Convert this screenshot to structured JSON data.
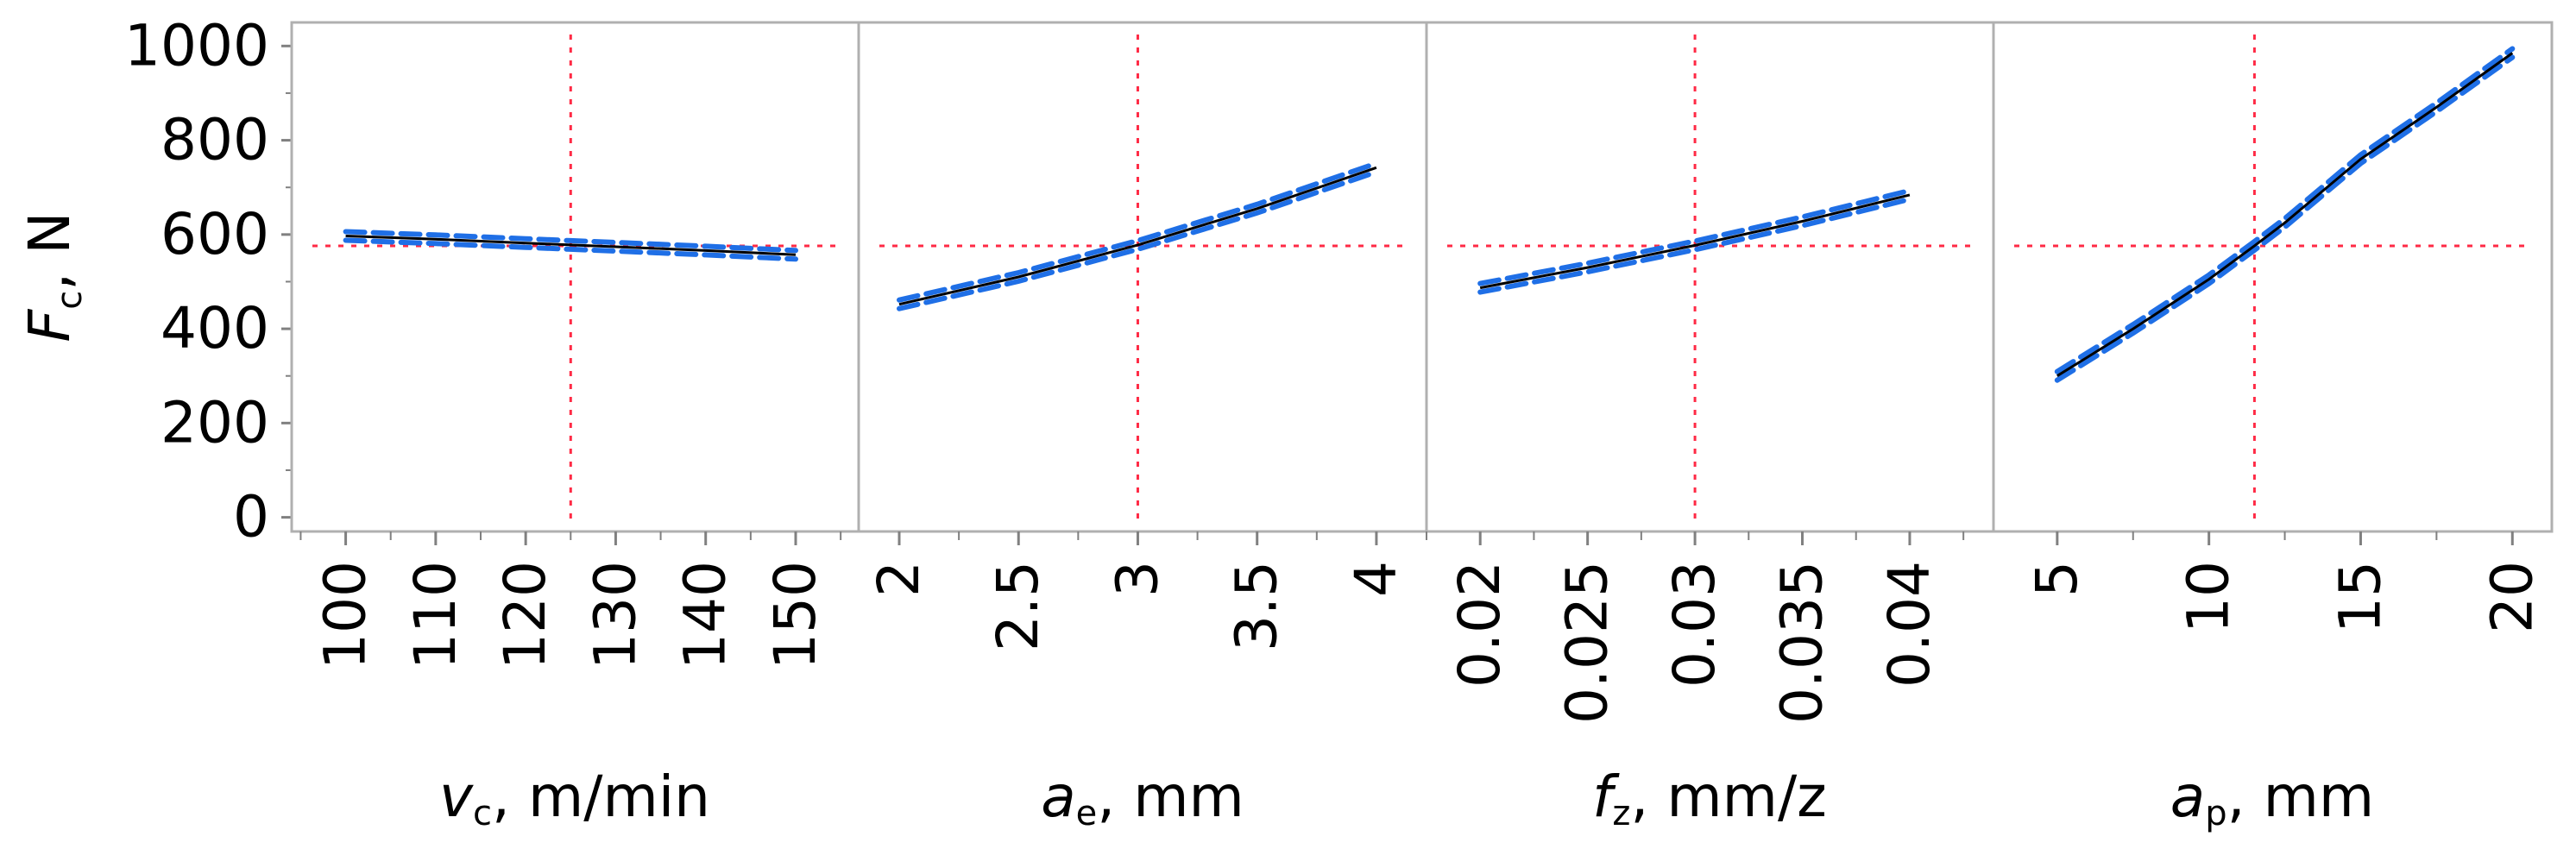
{
  "chart_data": {
    "type": "line",
    "title": "",
    "y_axis": {
      "label_symbol": "F",
      "label_subscript": "c",
      "label_unit": ", N",
      "ylim": [
        -30,
        1050
      ],
      "ticks": [
        0,
        200,
        400,
        600,
        800,
        1000
      ],
      "tick_labels": [
        "0",
        "200",
        "400",
        "600",
        "800",
        "1000"
      ]
    },
    "reference_y": 576,
    "colors": {
      "fit_line": "#000000",
      "confidence_band": "#1f6fe6",
      "reference_line": "#ff2a45",
      "frame": "#b0b0b0"
    },
    "panels": [
      {
        "x_label_symbol": "v",
        "x_label_subscript": "c",
        "x_label_unit": ", m/min",
        "xlim": [
          94,
          157
        ],
        "ticks": [
          100,
          110,
          120,
          130,
          140,
          150
        ],
        "tick_labels": [
          "100",
          "110",
          "120",
          "130",
          "140",
          "150"
        ],
        "reference_x": 125,
        "x": [
          100,
          110,
          120,
          125,
          130,
          140,
          150
        ],
        "y": [
          597,
          590,
          582,
          578,
          574,
          566,
          557
        ]
      },
      {
        "x_label_symbol": "a",
        "x_label_subscript": "e",
        "x_label_unit": ", mm",
        "xlim": [
          1.83,
          4.21
        ],
        "ticks": [
          2,
          2.5,
          3,
          3.5,
          4
        ],
        "tick_labels": [
          "2",
          "2.5",
          "3",
          "3.5",
          "4"
        ],
        "reference_x": 3,
        "x": [
          2,
          2.5,
          3,
          3.5,
          4
        ],
        "y": [
          452,
          510,
          578,
          655,
          742
        ]
      },
      {
        "x_label_symbol": "f",
        "x_label_subscript": "z",
        "x_label_unit": ", mm/z",
        "xlim": [
          0.0175,
          0.0439
        ],
        "ticks": [
          0.02,
          0.025,
          0.03,
          0.035,
          0.04
        ],
        "tick_labels": [
          "0.02",
          "0.025",
          "0.03",
          "0.035",
          "0.04"
        ],
        "reference_x": 0.03,
        "x": [
          0.02,
          0.025,
          0.03,
          0.035,
          0.04
        ],
        "y": [
          487,
          530,
          577,
          628,
          684
        ]
      },
      {
        "x_label_symbol": "a",
        "x_label_subscript": "p",
        "x_label_unit": ", mm",
        "xlim": [
          2.9,
          21.3
        ],
        "ticks": [
          5,
          10,
          15,
          20
        ],
        "tick_labels": [
          "5",
          "10",
          "15",
          "20"
        ],
        "reference_x": 11.5,
        "x": [
          5,
          7.5,
          10,
          11.5,
          12.5,
          15,
          17.5,
          20
        ],
        "y": [
          300,
          400,
          505,
          576,
          625,
          760,
          870,
          985
        ]
      }
    ]
  }
}
